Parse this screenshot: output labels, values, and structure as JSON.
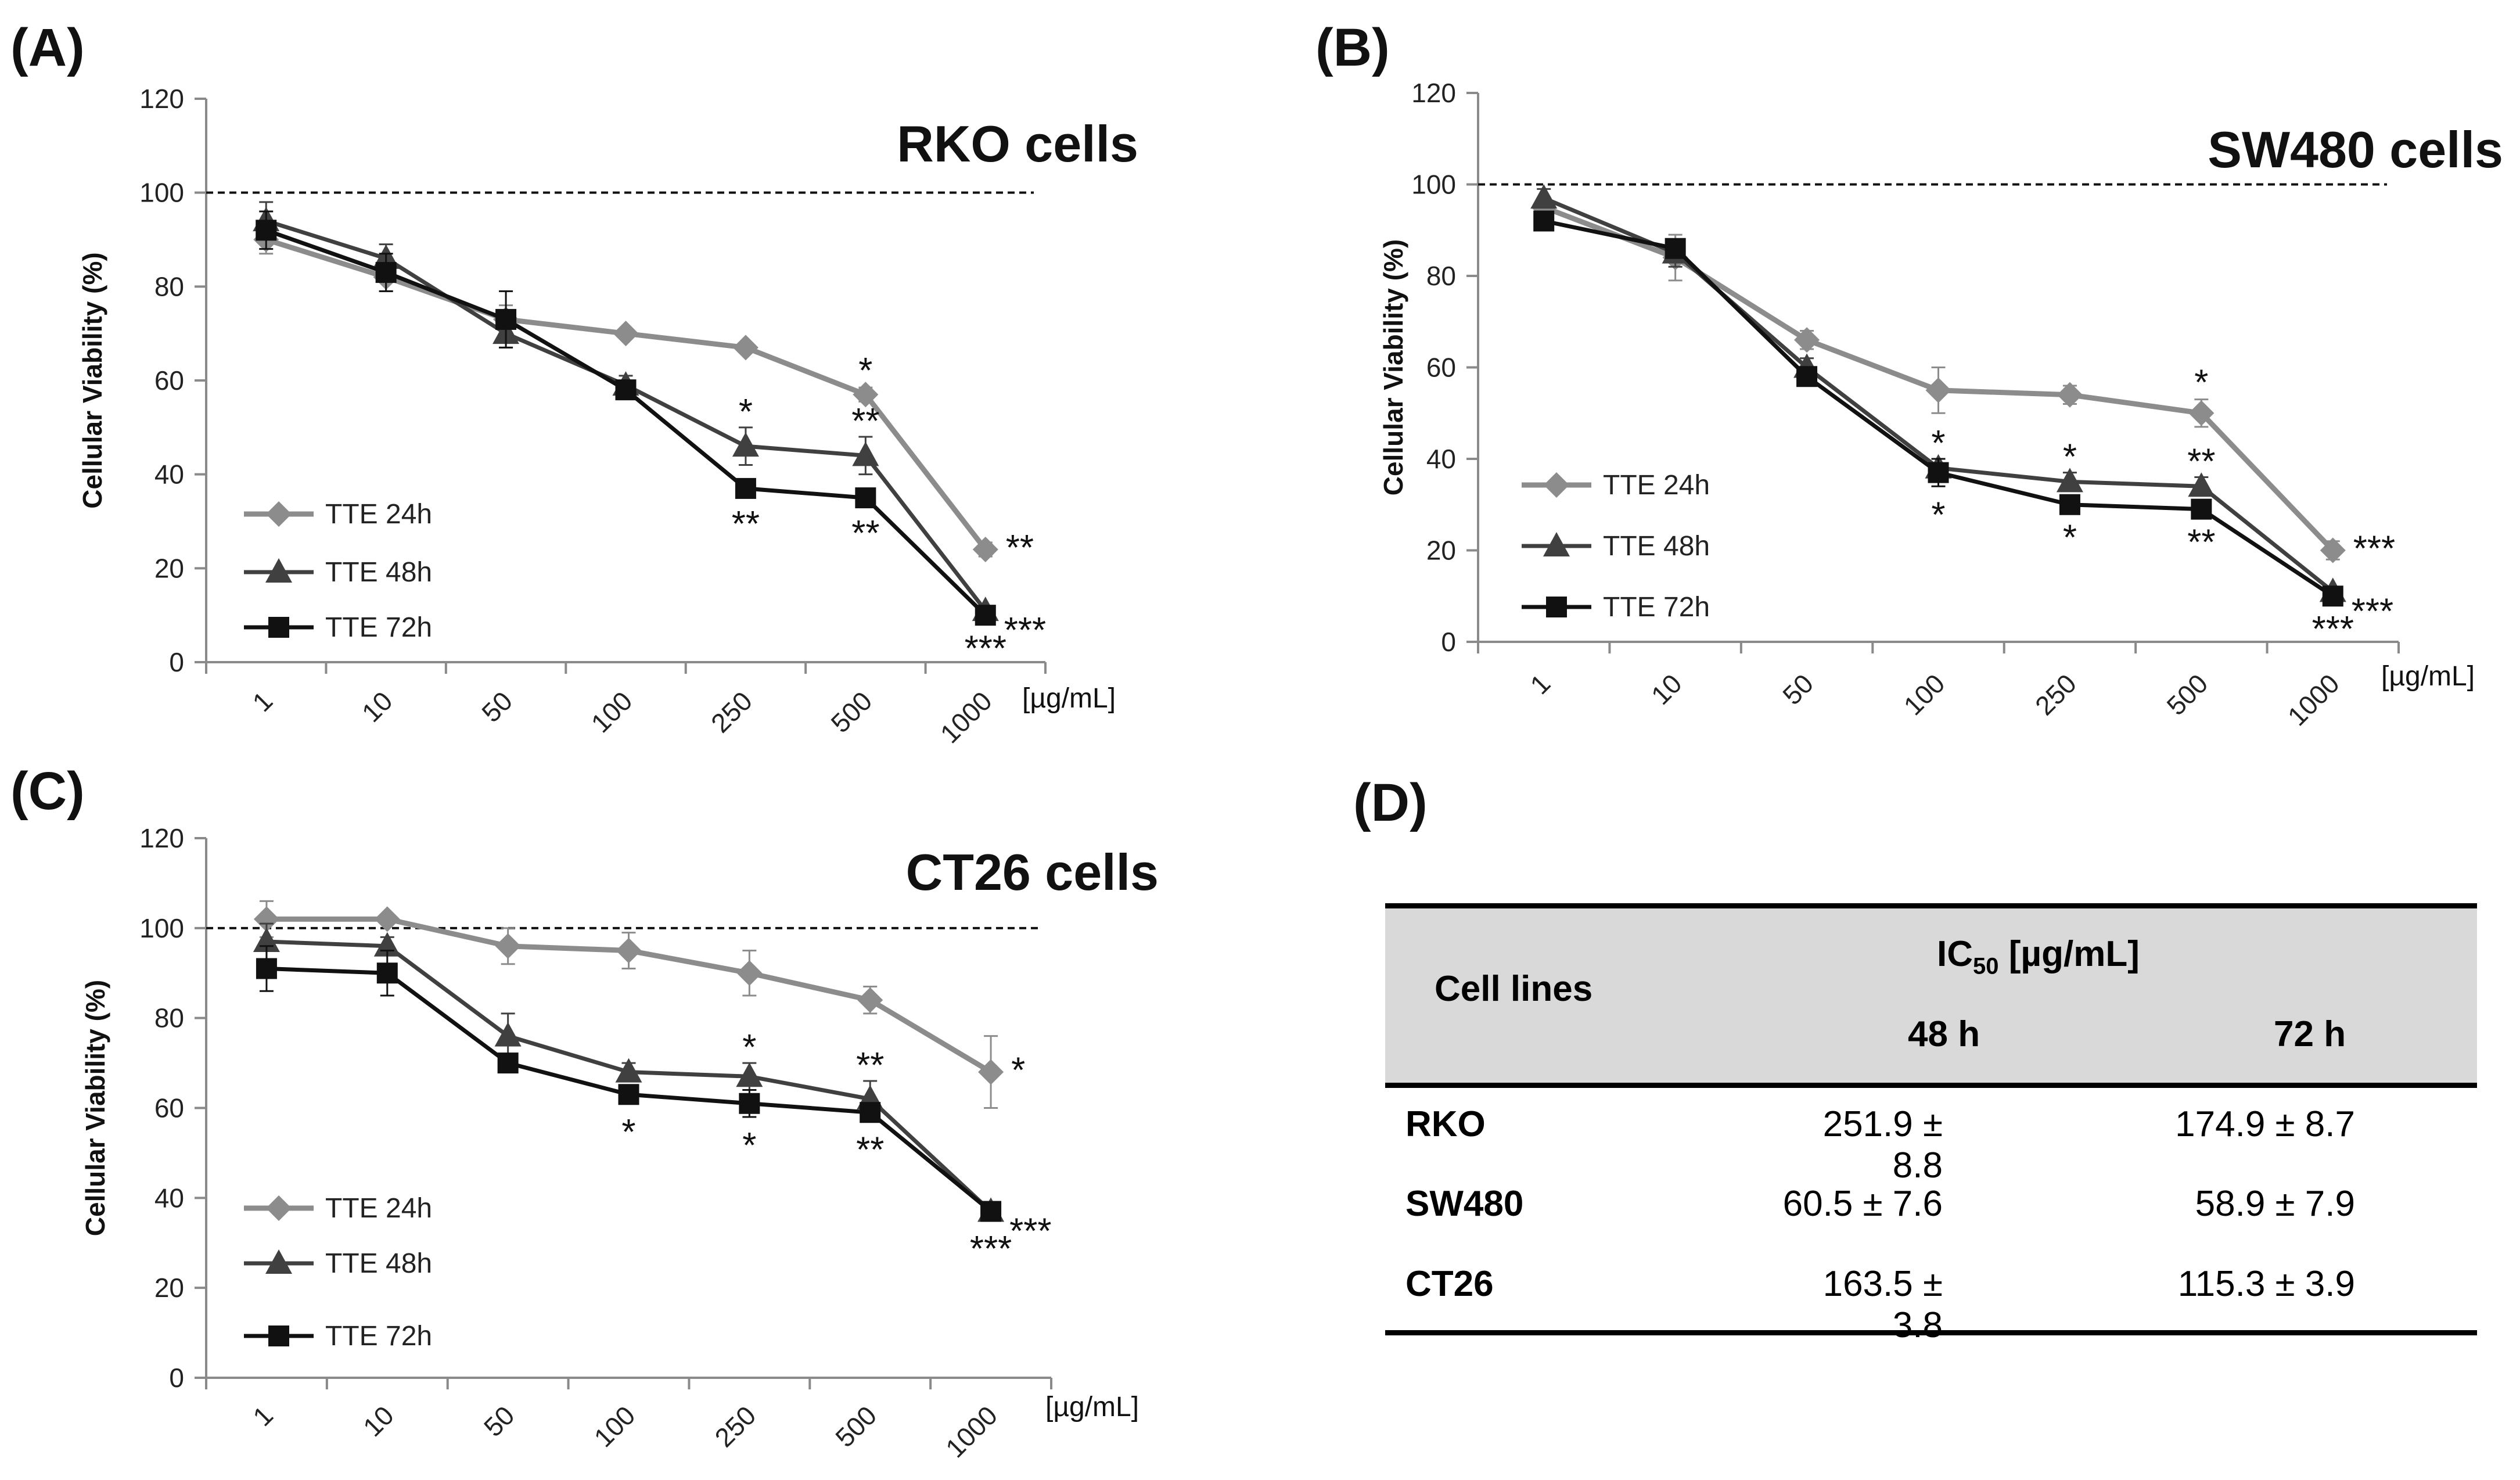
{
  "panels": {
    "A": "(A)",
    "B": "(B)",
    "C": "(C)",
    "D": "(D)"
  },
  "chart_data": [
    {
      "type": "line",
      "panel": "(A)",
      "title": "RKO cells",
      "xlabel": "[µg/mL]",
      "ylabel": "Cellular Viability (%)",
      "categories": [
        "1",
        "10",
        "50",
        "100",
        "250",
        "500",
        "1000"
      ],
      "ylim": [
        0,
        120
      ],
      "yticks": [
        "0",
        "20",
        "40",
        "60",
        "80",
        "100",
        "120"
      ],
      "reference_line": 100,
      "legend_placement": "bottom-left",
      "series": [
        {
          "name": "TTE 24h",
          "marker": "diamond",
          "color": "#8c8c8c",
          "values": [
            90,
            82,
            73,
            70,
            67,
            57,
            24
          ],
          "errors": [
            3,
            3,
            3,
            1,
            1,
            1.5,
            1.5
          ],
          "annotations": [
            "",
            "",
            "",
            "",
            "",
            "*",
            "**"
          ]
        },
        {
          "name": "TTE 48h",
          "marker": "triangle",
          "color": "#404040",
          "values": [
            94,
            86,
            70,
            59,
            46,
            44,
            11
          ],
          "errors": [
            4,
            3,
            3,
            2,
            4,
            4,
            1
          ],
          "annotations": [
            "",
            "",
            "",
            "",
            "*",
            "**",
            "***"
          ]
        },
        {
          "name": "TTE 72h",
          "marker": "square",
          "color": "#111111",
          "values": [
            92,
            83,
            73,
            58,
            37,
            35,
            10
          ],
          "errors": [
            4,
            4,
            6,
            2,
            1.5,
            1.5,
            1
          ],
          "annotations": [
            "",
            "",
            "",
            "",
            "**",
            "**",
            "***"
          ]
        }
      ]
    },
    {
      "type": "line",
      "panel": "(B)",
      "title": "SW480 cells",
      "xlabel": "[µg/mL]",
      "ylabel": "Cellular Viability (%)",
      "categories": [
        "1",
        "10",
        "50",
        "100",
        "250",
        "500",
        "1000"
      ],
      "ylim": [
        0,
        120
      ],
      "yticks": [
        "0",
        "20",
        "40",
        "60",
        "80",
        "100",
        "120"
      ],
      "reference_line": 100,
      "legend_placement": "bottom-left",
      "series": [
        {
          "name": "TTE 24h",
          "marker": "diamond",
          "color": "#8c8c8c",
          "values": [
            95,
            84,
            66,
            55,
            54,
            50,
            20
          ],
          "errors": [
            2,
            5,
            2,
            5,
            2,
            3,
            2
          ],
          "annotations": [
            "",
            "",
            "",
            "",
            "",
            "*",
            "***"
          ]
        },
        {
          "name": "TTE 48h",
          "marker": "triangle",
          "color": "#404040",
          "values": [
            97,
            85,
            60,
            38,
            35,
            34,
            11
          ],
          "errors": [
            2,
            3,
            2,
            2,
            2,
            2,
            1
          ],
          "annotations": [
            "",
            "",
            "",
            "*",
            "*",
            "**",
            "***"
          ]
        },
        {
          "name": "TTE 72h",
          "marker": "square",
          "color": "#111111",
          "values": [
            92,
            86,
            58,
            37,
            30,
            29,
            10
          ],
          "errors": [
            1,
            2,
            2,
            3,
            1,
            1,
            1
          ],
          "annotations": [
            "",
            "",
            "",
            "*",
            "*",
            "**",
            "***"
          ]
        }
      ]
    },
    {
      "type": "line",
      "panel": "(C)",
      "title": "CT26 cells",
      "xlabel": "[µg/mL]",
      "ylabel": "Cellular Viability (%)",
      "categories": [
        "1",
        "10",
        "50",
        "100",
        "250",
        "500",
        "1000"
      ],
      "ylim": [
        0,
        120
      ],
      "yticks": [
        "0",
        "20",
        "40",
        "60",
        "80",
        "100",
        "120"
      ],
      "reference_line": 100,
      "legend_placement": "bottom-left",
      "series": [
        {
          "name": "TTE 24h",
          "marker": "diamond",
          "color": "#8c8c8c",
          "values": [
            102,
            102,
            96,
            95,
            90,
            84,
            68
          ],
          "errors": [
            4,
            1,
            4,
            4,
            5,
            3,
            8
          ],
          "annotations": [
            "",
            "",
            "",
            "",
            "",
            "",
            "*"
          ]
        },
        {
          "name": "TTE 48h",
          "marker": "triangle",
          "color": "#404040",
          "values": [
            97,
            96,
            76,
            68,
            67,
            62,
            37
          ],
          "errors": [
            4,
            2,
            5,
            2,
            3,
            4,
            2
          ],
          "annotations": [
            "",
            "",
            "",
            "",
            "*",
            "**",
            "***"
          ]
        },
        {
          "name": "TTE 72h",
          "marker": "square",
          "color": "#111111",
          "values": [
            91,
            90,
            70,
            63,
            61,
            59,
            37
          ],
          "errors": [
            5,
            5,
            1,
            2,
            3,
            2,
            2
          ],
          "annotations": [
            "",
            "",
            "",
            "*",
            "*",
            "**",
            "***"
          ]
        }
      ]
    },
    {
      "type": "table",
      "panel": "(D)",
      "header": {
        "col1": "Cell lines",
        "group": "IC",
        "group_sub": "50",
        "group_unit": " [µg/mL]",
        "col2": "48 h",
        "col3": "72 h"
      },
      "rows": [
        {
          "cell_line": "RKO",
          "h48": "251.9 ± 8.8",
          "h72": "174.9 ± 8.7"
        },
        {
          "cell_line": "SW480",
          "h48": "60.5 ± 7.6",
          "h72": "58.9 ± 7.9"
        },
        {
          "cell_line": "CT26",
          "h48": "163.5 ± 3.8",
          "h72": "115.3 ± 3.9"
        }
      ]
    }
  ]
}
